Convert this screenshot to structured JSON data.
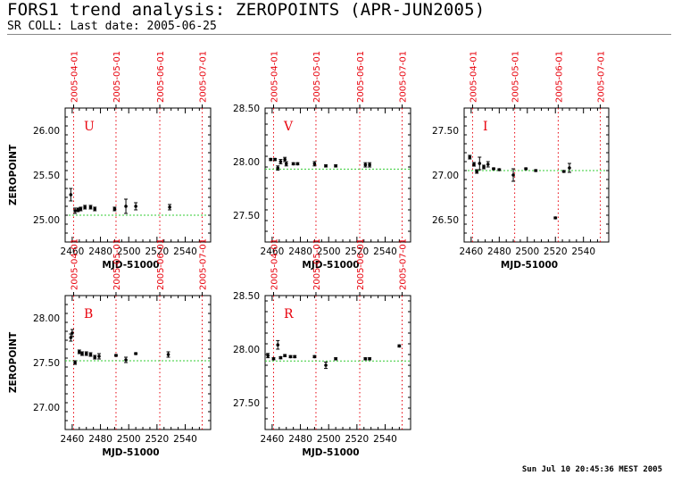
{
  "header": {
    "title": "FORS1 trend analysis: ZEROPOINTS (APR-JUN2005)",
    "subtitle": "SR COLL: Last date: 2005-06-25"
  },
  "footer": {
    "timestamp": "Sun Jul 10 20:45:36 MEST 2005"
  },
  "colors": {
    "date_line": "#e8000b",
    "reference_line": "#33cc33",
    "data": "#000000"
  },
  "chart_data": [
    {
      "type": "scatter",
      "band": "U",
      "title": "U",
      "xlabel": "MJD-51000",
      "ylabel": "ZEROPOINT",
      "xlim": [
        2455,
        2558
      ],
      "ylim": [
        24.75,
        26.25
      ],
      "xticks": [
        2460,
        2480,
        2500,
        2520,
        2540
      ],
      "yticks": [
        25.0,
        25.5,
        26.0
      ],
      "ytick_labels": [
        "25.00",
        "25.50",
        "26.00"
      ],
      "date_markers": [
        {
          "label": "2005-04-01",
          "x": 2461
        },
        {
          "label": "2005-05-01",
          "x": 2491
        },
        {
          "label": "2005-06-01",
          "x": 2522
        },
        {
          "label": "2005-07-01",
          "x": 2552
        }
      ],
      "reference": 25.05,
      "points": [
        {
          "x": 2459,
          "y": 25.28,
          "err": 0.07
        },
        {
          "x": 2462,
          "y": 25.1,
          "err": 0.03
        },
        {
          "x": 2464,
          "y": 25.11,
          "err": 0.02
        },
        {
          "x": 2466,
          "y": 25.12,
          "err": 0.02
        },
        {
          "x": 2469,
          "y": 25.14,
          "err": 0.02
        },
        {
          "x": 2473,
          "y": 25.14,
          "err": 0.02
        },
        {
          "x": 2476,
          "y": 25.12,
          "err": 0.02
        },
        {
          "x": 2490,
          "y": 25.12,
          "err": 0.02
        },
        {
          "x": 2498,
          "y": 25.15,
          "err": 0.08
        },
        {
          "x": 2505,
          "y": 25.15,
          "err": 0.04
        },
        {
          "x": 2529,
          "y": 25.14,
          "err": 0.03
        }
      ]
    },
    {
      "type": "scatter",
      "band": "V",
      "title": "V",
      "xlabel": "MJD-51000",
      "ylabel": "",
      "xlim": [
        2455,
        2558
      ],
      "ylim": [
        27.25,
        28.5
      ],
      "xticks": [
        2460,
        2480,
        2500,
        2520,
        2540
      ],
      "yticks": [
        27.5,
        28.0,
        28.5
      ],
      "ytick_labels": [
        "27.50",
        "28.00",
        "28.50"
      ],
      "date_markers": [
        {
          "label": "2005-04-01",
          "x": 2461
        },
        {
          "label": "2005-05-01",
          "x": 2491
        },
        {
          "label": "2005-06-01",
          "x": 2522
        },
        {
          "label": "2005-07-01",
          "x": 2552
        }
      ],
      "reference": 27.93,
      "points": [
        {
          "x": 2459,
          "y": 28.02,
          "err": 0.01
        },
        {
          "x": 2462,
          "y": 28.02,
          "err": 0.01
        },
        {
          "x": 2464,
          "y": 27.94,
          "err": 0.02
        },
        {
          "x": 2466,
          "y": 28.0,
          "err": 0.02
        },
        {
          "x": 2469,
          "y": 28.02,
          "err": 0.02
        },
        {
          "x": 2470,
          "y": 27.98,
          "err": 0.02
        },
        {
          "x": 2475,
          "y": 27.98,
          "err": 0.01
        },
        {
          "x": 2478,
          "y": 27.98,
          "err": 0.01
        },
        {
          "x": 2490,
          "y": 27.98,
          "err": 0.02
        },
        {
          "x": 2498,
          "y": 27.96,
          "err": 0.01
        },
        {
          "x": 2505,
          "y": 27.96,
          "err": 0.01
        },
        {
          "x": 2526,
          "y": 27.97,
          "err": 0.02
        },
        {
          "x": 2529,
          "y": 27.97,
          "err": 0.02
        }
      ]
    },
    {
      "type": "scatter",
      "band": "I",
      "title": "I",
      "xlabel": "MJD-51000",
      "ylabel": "",
      "xlim": [
        2455,
        2558
      ],
      "ylim": [
        26.25,
        27.75
      ],
      "xticks": [
        2460,
        2480,
        2500,
        2520,
        2540
      ],
      "yticks": [
        26.5,
        27.0,
        27.5
      ],
      "ytick_labels": [
        "26.50",
        "27.00",
        "27.50"
      ],
      "date_markers": [
        {
          "label": "2005-04-01",
          "x": 2461
        },
        {
          "label": "2005-05-01",
          "x": 2491
        },
        {
          "label": "2005-06-01",
          "x": 2522
        },
        {
          "label": "2005-07-01",
          "x": 2552
        }
      ],
      "reference": 27.05,
      "points": [
        {
          "x": 2459,
          "y": 27.2,
          "err": 0.02
        },
        {
          "x": 2462,
          "y": 27.12,
          "err": 0.02
        },
        {
          "x": 2464,
          "y": 27.04,
          "err": 0.02
        },
        {
          "x": 2466,
          "y": 27.13,
          "err": 0.07
        },
        {
          "x": 2469,
          "y": 27.09,
          "err": 0.02
        },
        {
          "x": 2472,
          "y": 27.12,
          "err": 0.03
        },
        {
          "x": 2476,
          "y": 27.07,
          "err": 0.01
        },
        {
          "x": 2480,
          "y": 27.06,
          "err": 0.01
        },
        {
          "x": 2490,
          "y": 27.0,
          "err": 0.07
        },
        {
          "x": 2499,
          "y": 27.07,
          "err": 0.01
        },
        {
          "x": 2506,
          "y": 27.05,
          "err": 0.01
        },
        {
          "x": 2520,
          "y": 26.52,
          "err": 0.01
        },
        {
          "x": 2526,
          "y": 27.04,
          "err": 0.01
        },
        {
          "x": 2530,
          "y": 27.08,
          "err": 0.05
        }
      ]
    },
    {
      "type": "scatter",
      "band": "B",
      "title": "B",
      "xlabel": "MJD-51000",
      "ylabel": "ZEROPOINT",
      "xlim": [
        2455,
        2558
      ],
      "ylim": [
        26.75,
        28.25
      ],
      "xticks": [
        2460,
        2480,
        2500,
        2520,
        2540
      ],
      "yticks": [
        27.0,
        27.5,
        28.0
      ],
      "ytick_labels": [
        "27.00",
        "27.50",
        "28.00"
      ],
      "date_markers": [
        {
          "label": "2005-04-01",
          "x": 2461
        },
        {
          "label": "2005-05-01",
          "x": 2491
        },
        {
          "label": "2005-06-01",
          "x": 2522
        },
        {
          "label": "2005-07-01",
          "x": 2552
        }
      ],
      "reference": 27.52,
      "points": [
        {
          "x": 2459,
          "y": 27.78,
          "err": 0.04
        },
        {
          "x": 2460,
          "y": 27.83,
          "err": 0.04
        },
        {
          "x": 2462,
          "y": 27.5,
          "err": 0.02
        },
        {
          "x": 2465,
          "y": 27.62,
          "err": 0.02
        },
        {
          "x": 2467,
          "y": 27.6,
          "err": 0.02
        },
        {
          "x": 2470,
          "y": 27.6,
          "err": 0.02
        },
        {
          "x": 2473,
          "y": 27.59,
          "err": 0.02
        },
        {
          "x": 2476,
          "y": 27.56,
          "err": 0.02
        },
        {
          "x": 2479,
          "y": 27.57,
          "err": 0.03
        },
        {
          "x": 2491,
          "y": 27.58,
          "err": 0.01
        },
        {
          "x": 2498,
          "y": 27.53,
          "err": 0.03
        },
        {
          "x": 2505,
          "y": 27.6,
          "err": 0.01
        },
        {
          "x": 2528,
          "y": 27.59,
          "err": 0.03
        }
      ]
    },
    {
      "type": "scatter",
      "band": "R",
      "title": "R",
      "xlabel": "MJD-51000",
      "ylabel": "",
      "xlim": [
        2455,
        2558
      ],
      "ylim": [
        27.25,
        28.5
      ],
      "xticks": [
        2460,
        2480,
        2500,
        2520,
        2540
      ],
      "yticks": [
        27.5,
        28.0,
        28.5
      ],
      "ytick_labels": [
        "27.50",
        "28.00",
        "28.50"
      ],
      "date_markers": [
        {
          "label": "2005-04-01",
          "x": 2461
        },
        {
          "label": "2005-05-01",
          "x": 2491
        },
        {
          "label": "2005-06-01",
          "x": 2522
        },
        {
          "label": "2005-07-01",
          "x": 2552
        }
      ],
      "reference": 27.89,
      "points": [
        {
          "x": 2457,
          "y": 27.94,
          "err": 0.02
        },
        {
          "x": 2461,
          "y": 27.91,
          "err": 0.01
        },
        {
          "x": 2464,
          "y": 28.04,
          "err": 0.04
        },
        {
          "x": 2466,
          "y": 27.92,
          "err": 0.01
        },
        {
          "x": 2469,
          "y": 27.94,
          "err": 0.01
        },
        {
          "x": 2473,
          "y": 27.93,
          "err": 0.01
        },
        {
          "x": 2476,
          "y": 27.93,
          "err": 0.01
        },
        {
          "x": 2490,
          "y": 27.93,
          "err": 0.01
        },
        {
          "x": 2498,
          "y": 27.85,
          "err": 0.03
        },
        {
          "x": 2505,
          "y": 27.91,
          "err": 0.01
        },
        {
          "x": 2526,
          "y": 27.91,
          "err": 0.01
        },
        {
          "x": 2529,
          "y": 27.91,
          "err": 0.01
        },
        {
          "x": 2550,
          "y": 28.03,
          "err": 0.01
        }
      ]
    }
  ]
}
